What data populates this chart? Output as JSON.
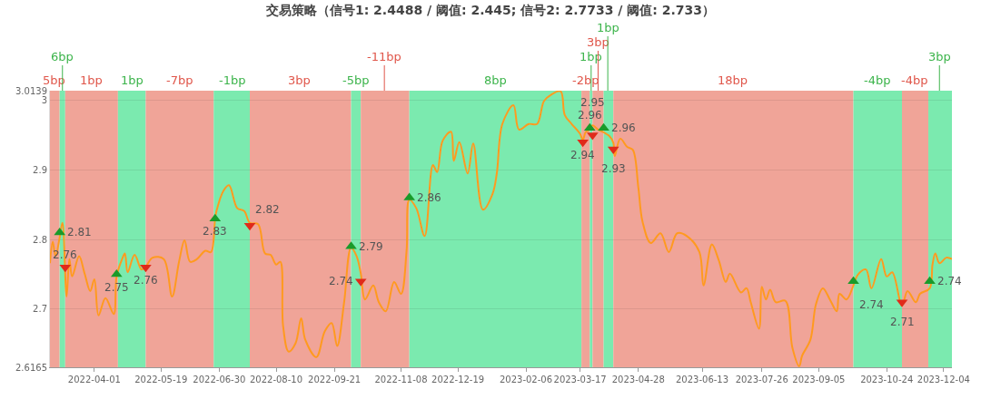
{
  "chart_data": {
    "type": "line",
    "title": "交易策略（信号1: 2.4488 / 阈值: 2.445; 信号2: 2.7733 / 阈值: 2.733）",
    "x": [
      "2022-02-28",
      "2022-03-02",
      "2022-03-04",
      "2022-03-07",
      "2022-03-09",
      "2022-03-12",
      "2022-03-14",
      "2022-03-16",
      "2022-03-21",
      "2022-03-25",
      "2022-03-29",
      "2022-04-01",
      "2022-04-04",
      "2022-04-09",
      "2022-04-15",
      "2022-04-17",
      "2022-04-21",
      "2022-04-23",
      "2022-04-25",
      "2022-04-30",
      "2022-05-05",
      "2022-05-08",
      "2022-05-13",
      "2022-05-21",
      "2022-05-27",
      "2022-06-01",
      "2022-06-05",
      "2022-06-09",
      "2022-06-14",
      "2022-06-20",
      "2022-06-24",
      "2022-06-27",
      "2022-06-28",
      "2022-07-03",
      "2022-07-07",
      "2022-07-13",
      "2022-07-18",
      "2022-07-22",
      "2022-07-28",
      "2022-08-02",
      "2022-08-06",
      "2022-08-10",
      "2022-08-13",
      "2022-08-15",
      "2022-08-19",
      "2022-08-24",
      "2022-08-28",
      "2022-08-31",
      "2022-09-08",
      "2022-09-14",
      "2022-09-19",
      "2022-09-23",
      "2022-09-28",
      "2022-10-03",
      "2022-10-07",
      "2022-10-10",
      "2022-10-13",
      "2022-10-19",
      "2022-10-23",
      "2022-10-28",
      "2022-11-03",
      "2022-11-08",
      "2022-11-12",
      "2022-11-14",
      "2022-11-19",
      "2022-11-25",
      "2022-12-01",
      "2022-12-04",
      "2022-12-08",
      "2022-12-14",
      "2022-12-16",
      "2022-12-20",
      "2022-12-26",
      "2022-12-30",
      "2023-01-06",
      "2023-01-13",
      "2023-01-16",
      "2023-01-20",
      "2023-01-28",
      "2023-02-01",
      "2023-02-08",
      "2023-02-14",
      "2023-02-19",
      "2023-02-24",
      "2023-03-03",
      "2023-03-06",
      "2023-03-11",
      "2023-03-17",
      "2023-03-19",
      "2023-03-21",
      "2023-03-24",
      "2023-03-26",
      "2023-03-30",
      "2023-04-03",
      "2023-04-07",
      "2023-04-10",
      "2023-04-11",
      "2023-04-15",
      "2023-04-20",
      "2023-04-24",
      "2023-04-28",
      "2023-05-01",
      "2023-05-07",
      "2023-05-14",
      "2023-05-20",
      "2023-05-26",
      "2023-06-02",
      "2023-06-11",
      "2023-06-14",
      "2023-06-20",
      "2023-06-25",
      "2023-06-30",
      "2023-07-03",
      "2023-07-11",
      "2023-07-15",
      "2023-07-18",
      "2023-07-24",
      "2023-07-26",
      "2023-07-29",
      "2023-08-01",
      "2023-08-05",
      "2023-08-12",
      "2023-08-17",
      "2023-08-22",
      "2023-08-24",
      "2023-08-30",
      "2023-09-03",
      "2023-09-08",
      "2023-09-13",
      "2023-09-18",
      "2023-09-20",
      "2023-09-25",
      "2023-09-30",
      "2023-10-03",
      "2023-10-09",
      "2023-10-13",
      "2023-10-20",
      "2023-10-24",
      "2023-10-28",
      "2023-11-04",
      "2023-11-08",
      "2023-11-14",
      "2023-11-17",
      "2023-11-24",
      "2023-11-26",
      "2023-11-28",
      "2023-12-01",
      "2023-12-06",
      "2023-12-10"
    ],
    "series": [
      {
        "color": "#ff9a1f",
        "values": [
          2.766,
          2.797,
          2.776,
          2.803,
          2.824,
          2.718,
          2.772,
          2.747,
          2.776,
          2.751,
          2.726,
          2.743,
          2.691,
          2.716,
          2.693,
          2.747,
          2.772,
          2.78,
          2.753,
          2.778,
          2.757,
          2.761,
          2.774,
          2.772,
          2.718,
          2.768,
          2.799,
          2.768,
          2.772,
          2.784,
          2.782,
          2.83,
          2.841,
          2.87,
          2.878,
          2.845,
          2.841,
          2.824,
          2.822,
          2.78,
          2.778,
          2.764,
          2.768,
          2.676,
          2.639,
          2.651,
          2.687,
          2.656,
          2.631,
          2.668,
          2.68,
          2.647,
          2.71,
          2.788,
          2.776,
          2.751,
          2.714,
          2.734,
          2.71,
          2.697,
          2.739,
          2.722,
          2.784,
          2.857,
          2.845,
          2.805,
          2.907,
          2.897,
          2.942,
          2.955,
          2.913,
          2.94,
          2.895,
          2.938,
          2.843,
          2.866,
          2.895,
          2.966,
          2.993,
          2.958,
          2.966,
          2.966,
          2.999,
          3.008,
          3.013,
          2.979,
          2.966,
          2.952,
          2.943,
          2.954,
          2.958,
          2.964,
          2.958,
          2.954,
          2.949,
          2.939,
          2.92,
          2.945,
          2.933,
          2.929,
          2.875,
          2.826,
          2.795,
          2.809,
          2.782,
          2.809,
          2.805,
          2.782,
          2.734,
          2.793,
          2.77,
          2.739,
          2.751,
          2.724,
          2.73,
          2.71,
          2.672,
          2.732,
          2.714,
          2.728,
          2.71,
          2.712,
          2.645,
          2.618,
          2.633,
          2.656,
          2.707,
          2.73,
          2.714,
          2.697,
          2.722,
          2.714,
          2.734,
          2.749,
          2.757,
          2.73,
          2.772,
          2.747,
          2.753,
          2.705,
          2.726,
          2.71,
          2.722,
          2.73,
          2.764,
          2.78,
          2.766,
          2.774,
          2.772
        ]
      },
      {
        "type": "scatter",
        "color": "#1a9a2a",
        "marker": "triangle-up",
        "x": [
          "2022-03-07",
          "2022-04-17",
          "2022-06-27",
          "2022-10-03",
          "2022-11-14",
          "2023-03-24",
          "2023-04-03",
          "2023-09-30",
          "2023-11-24"
        ],
        "values": [
          2.81,
          2.75,
          2.83,
          2.79,
          2.86,
          2.96,
          2.96,
          2.74,
          2.74
        ],
        "value_labels": [
          "2.81",
          "2.75",
          "2.83",
          "2.79",
          "2.86",
          "2.96",
          "2.96",
          "2.74",
          "2.74"
        ]
      },
      {
        "type": "scatter",
        "color": "#e02a1a",
        "marker": "triangle-down",
        "x": [
          "2022-03-11",
          "2022-05-08",
          "2022-07-22",
          "2022-10-10",
          "2023-03-19",
          "2023-03-26",
          "2023-04-10",
          "2023-11-04"
        ],
        "values": [
          2.76,
          2.76,
          2.82,
          2.74,
          2.94,
          2.95,
          2.93,
          2.71
        ],
        "value_labels": [
          "2.76",
          "2.76",
          "2.82",
          "2.74",
          "2.94",
          "2.95",
          "2.93",
          "2.71"
        ]
      }
    ],
    "xlim": [
      "2022-02-28",
      "2023-12-10"
    ],
    "xticks": [
      "2022-04-01",
      "2022-05-19",
      "2022-06-30",
      "2022-08-10",
      "2022-09-21",
      "2022-11-08",
      "2022-12-19",
      "2023-02-06",
      "2023-03-17",
      "2023-04-28",
      "2023-06-13",
      "2023-07-26",
      "2023-09-05",
      "2023-10-24",
      "2023-12-04"
    ],
    "ylim": [
      2.6165,
      3.0139
    ],
    "yticks": [
      2.6165,
      2.7,
      2.8,
      2.9,
      3,
      3.0139
    ],
    "grid": "y",
    "marker": "none",
    "bands": [
      {
        "axis": "x",
        "from": "2022-02-28",
        "to": "2022-03-07",
        "label": "5bp",
        "color": "#f0a498"
      },
      {
        "axis": "x",
        "from": "2022-03-07",
        "to": "2022-03-11",
        "label": "6bp",
        "color": "#7beaaf"
      },
      {
        "axis": "x",
        "from": "2022-03-11",
        "to": "2022-04-18",
        "label": "1bp",
        "color": "#f0a498"
      },
      {
        "axis": "x",
        "from": "2022-04-18",
        "to": "2022-05-08",
        "label": "1bp",
        "color": "#7beaaf"
      },
      {
        "axis": "x",
        "from": "2022-05-08",
        "to": "2022-06-26",
        "label": "-7bp",
        "color": "#f0a498"
      },
      {
        "axis": "x",
        "from": "2022-06-26",
        "to": "2022-07-22",
        "label": "-1bp",
        "color": "#7beaaf"
      },
      {
        "axis": "x",
        "from": "2022-07-22",
        "to": "2022-10-03",
        "label": "3bp",
        "color": "#f0a498"
      },
      {
        "axis": "x",
        "from": "2022-10-03",
        "to": "2022-10-10",
        "label": "-5bp",
        "color": "#7beaaf"
      },
      {
        "axis": "x",
        "from": "2022-10-10",
        "to": "2022-11-14",
        "label": "-11bp",
        "color": "#f0a498"
      },
      {
        "axis": "x",
        "from": "2022-11-14",
        "to": "2023-03-18",
        "label": "8bp",
        "color": "#7beaaf"
      },
      {
        "axis": "x",
        "from": "2023-03-18",
        "to": "2023-03-24",
        "label": "-2bp",
        "color": "#f0a498"
      },
      {
        "axis": "x",
        "from": "2023-03-24",
        "to": "2023-03-26",
        "label": "1bp",
        "color": "#7beaaf"
      },
      {
        "axis": "x",
        "from": "2023-03-26",
        "to": "2023-04-03",
        "label": "3bp",
        "color": "#f0a498"
      },
      {
        "axis": "x",
        "from": "2023-04-03",
        "to": "2023-04-10",
        "label": "1bp",
        "color": "#7beaaf"
      },
      {
        "axis": "x",
        "from": "2023-04-10",
        "to": "2023-09-30",
        "label": "18bp",
        "color": "#f0a498"
      },
      {
        "axis": "x",
        "from": "2023-09-30",
        "to": "2023-11-04",
        "label": "-4bp",
        "color": "#7beaaf"
      },
      {
        "axis": "x",
        "from": "2023-11-04",
        "to": "2023-11-23",
        "label": "-4bp",
        "color": "#f0a498"
      },
      {
        "axis": "x",
        "from": "2023-11-23",
        "to": "2023-12-10",
        "label": "3bp",
        "color": "#7beaaf"
      }
    ]
  }
}
